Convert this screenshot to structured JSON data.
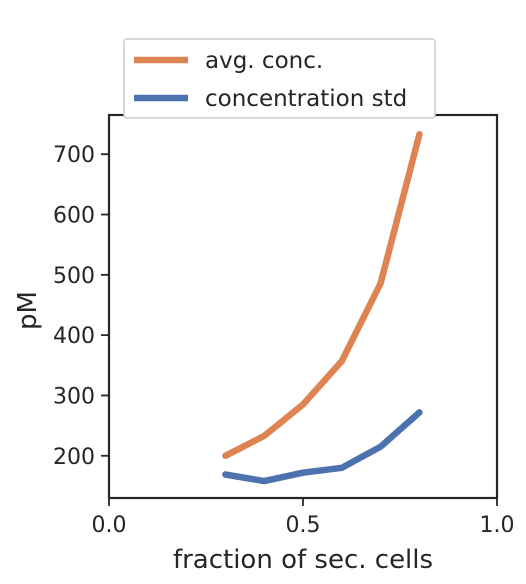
{
  "chart_data": {
    "type": "line",
    "xlabel": "fraction of sec. cells",
    "ylabel": "pM",
    "xlim": [
      0.0,
      1.0
    ],
    "ylim": [
      130,
      765
    ],
    "xticks": [
      0.0,
      0.5,
      1.0
    ],
    "xtick_labels": [
      "0.0",
      "0.5",
      "1.0"
    ],
    "yticks": [
      200,
      300,
      400,
      500,
      600,
      700
    ],
    "ytick_labels": [
      "200",
      "300",
      "400",
      "500",
      "600",
      "700"
    ],
    "grid": false,
    "legend_position": "above plot",
    "series": [
      {
        "name": "avg. conc.",
        "color": "#dd8452",
        "x": [
          0.3,
          0.4,
          0.5,
          0.6,
          0.7,
          0.8
        ],
        "y": [
          200,
          233,
          285,
          357,
          486,
          733
        ]
      },
      {
        "name": "concentration std",
        "color": "#4c72b0",
        "x": [
          0.3,
          0.4,
          0.5,
          0.6,
          0.7,
          0.8
        ],
        "y": [
          169,
          158,
          172,
          180,
          215,
          272
        ]
      }
    ]
  }
}
